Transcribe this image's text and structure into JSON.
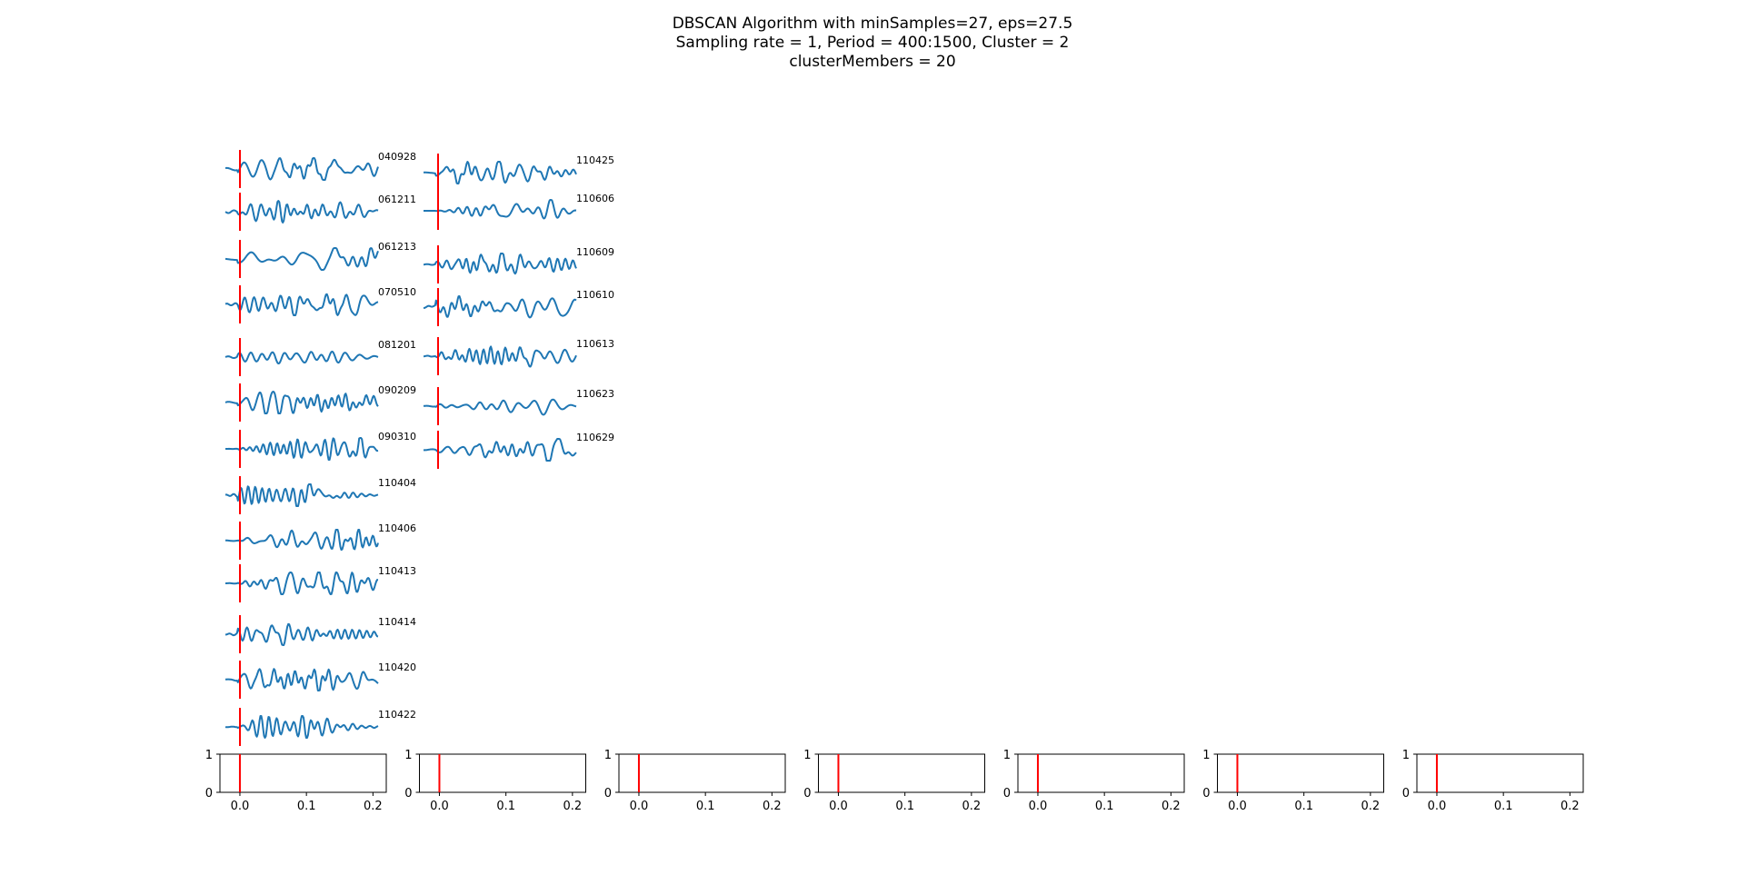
{
  "title_lines": [
    "DBSCAN Algorithm with minSamples=27, eps=27.5",
    "Sampling rate = 1, Period = 400:1500, Cluster = 2",
    "clusterMembers = 20"
  ],
  "chart_data": {
    "type": "line",
    "title": "DBSCAN Algorithm with minSamples=27, eps=27.5 / Sampling rate = 1, Period = 400:1500, Cluster = 2 / clusterMembers = 20",
    "marker_x": 0.0,
    "marker_color": "#ff0000",
    "trace_color": "#1f77b4",
    "trace_xlim": [
      -0.02,
      0.21
    ],
    "columns": [
      {
        "members": [
          "040928",
          "061211",
          "061213",
          "070510",
          "081201",
          "090209",
          "090310",
          "110404",
          "110406",
          "110413",
          "110414",
          "110420",
          "110422"
        ]
      },
      {
        "members": [
          "110425",
          "110606",
          "110609",
          "110610",
          "110613",
          "110623",
          "110629"
        ]
      }
    ],
    "empty_axes": {
      "count": 7,
      "xlim": [
        -0.03,
        0.22
      ],
      "ylim": [
        0,
        1
      ],
      "x_ticks": [
        "0.0",
        "0.1",
        "0.2"
      ],
      "x_tick_values": [
        0.0,
        0.1,
        0.2
      ],
      "y_ticks": [
        "0",
        "1"
      ],
      "y_tick_values": [
        0,
        1
      ],
      "marker_x": 0.0
    }
  }
}
